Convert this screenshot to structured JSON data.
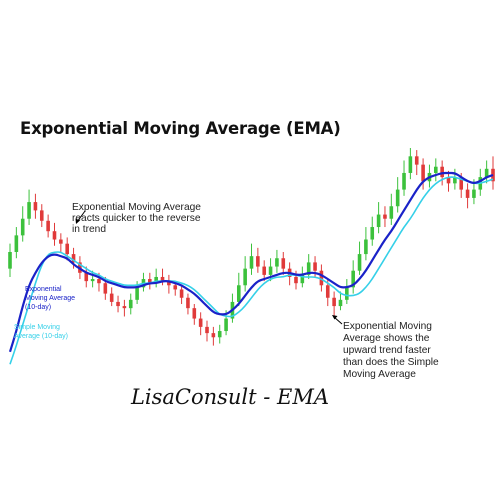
{
  "title": "Exponential Moving Average (EMA)",
  "watermark": "LisaConsult - EMA",
  "chart_data": {
    "type": "line",
    "grid": false,
    "candle_colors": {
      "up": "#3cc13c",
      "down": "#e03a3a"
    },
    "ylim": [
      0,
      100
    ],
    "candles": [
      {
        "o": 42,
        "c": 50,
        "h": 54,
        "l": 38
      },
      {
        "o": 50,
        "c": 58,
        "h": 62,
        "l": 47
      },
      {
        "o": 58,
        "c": 66,
        "h": 72,
        "l": 55
      },
      {
        "o": 66,
        "c": 74,
        "h": 80,
        "l": 63
      },
      {
        "o": 74,
        "c": 70,
        "h": 78,
        "l": 66
      },
      {
        "o": 70,
        "c": 65,
        "h": 73,
        "l": 62
      },
      {
        "o": 65,
        "c": 60,
        "h": 68,
        "l": 57
      },
      {
        "o": 60,
        "c": 56,
        "h": 64,
        "l": 53
      },
      {
        "o": 56,
        "c": 54,
        "h": 59,
        "l": 50
      },
      {
        "o": 54,
        "c": 49,
        "h": 57,
        "l": 46
      },
      {
        "o": 49,
        "c": 45,
        "h": 52,
        "l": 42
      },
      {
        "o": 45,
        "c": 40,
        "h": 48,
        "l": 37
      },
      {
        "o": 40,
        "c": 36,
        "h": 43,
        "l": 33
      },
      {
        "o": 36,
        "c": 37,
        "h": 41,
        "l": 33
      },
      {
        "o": 37,
        "c": 35,
        "h": 40,
        "l": 31
      },
      {
        "o": 35,
        "c": 30,
        "h": 38,
        "l": 27
      },
      {
        "o": 30,
        "c": 26,
        "h": 33,
        "l": 24
      },
      {
        "o": 26,
        "c": 24,
        "h": 29,
        "l": 21
      },
      {
        "o": 24,
        "c": 23,
        "h": 27,
        "l": 19
      },
      {
        "o": 23,
        "c": 27,
        "h": 30,
        "l": 20
      },
      {
        "o": 27,
        "c": 33,
        "h": 36,
        "l": 25
      },
      {
        "o": 33,
        "c": 37,
        "h": 40,
        "l": 31
      },
      {
        "o": 37,
        "c": 35,
        "h": 40,
        "l": 32
      },
      {
        "o": 35,
        "c": 38,
        "h": 42,
        "l": 33
      },
      {
        "o": 38,
        "c": 36,
        "h": 42,
        "l": 34
      },
      {
        "o": 36,
        "c": 34,
        "h": 39,
        "l": 30
      },
      {
        "o": 34,
        "c": 32,
        "h": 36,
        "l": 29
      },
      {
        "o": 32,
        "c": 28,
        "h": 34,
        "l": 25
      },
      {
        "o": 28,
        "c": 23,
        "h": 30,
        "l": 20
      },
      {
        "o": 23,
        "c": 18,
        "h": 25,
        "l": 15
      },
      {
        "o": 18,
        "c": 14,
        "h": 21,
        "l": 10
      },
      {
        "o": 14,
        "c": 11,
        "h": 17,
        "l": 7
      },
      {
        "o": 11,
        "c": 9,
        "h": 14,
        "l": 5
      },
      {
        "o": 9,
        "c": 12,
        "h": 15,
        "l": 6
      },
      {
        "o": 12,
        "c": 18,
        "h": 22,
        "l": 10
      },
      {
        "o": 18,
        "c": 26,
        "h": 30,
        "l": 16
      },
      {
        "o": 26,
        "c": 34,
        "h": 40,
        "l": 24
      },
      {
        "o": 34,
        "c": 42,
        "h": 48,
        "l": 31
      },
      {
        "o": 42,
        "c": 48,
        "h": 54,
        "l": 39
      },
      {
        "o": 48,
        "c": 43,
        "h": 52,
        "l": 40
      },
      {
        "o": 43,
        "c": 39,
        "h": 46,
        "l": 36
      },
      {
        "o": 39,
        "c": 43,
        "h": 47,
        "l": 36
      },
      {
        "o": 43,
        "c": 47,
        "h": 51,
        "l": 40
      },
      {
        "o": 47,
        "c": 42,
        "h": 50,
        "l": 39
      },
      {
        "o": 42,
        "c": 38,
        "h": 45,
        "l": 34
      },
      {
        "o": 38,
        "c": 35,
        "h": 41,
        "l": 32
      },
      {
        "o": 35,
        "c": 39,
        "h": 43,
        "l": 33
      },
      {
        "o": 39,
        "c": 45,
        "h": 49,
        "l": 37
      },
      {
        "o": 45,
        "c": 41,
        "h": 48,
        "l": 38
      },
      {
        "o": 41,
        "c": 34,
        "h": 44,
        "l": 31
      },
      {
        "o": 34,
        "c": 28,
        "h": 37,
        "l": 24
      },
      {
        "o": 28,
        "c": 24,
        "h": 31,
        "l": 19
      },
      {
        "o": 24,
        "c": 27,
        "h": 31,
        "l": 22
      },
      {
        "o": 27,
        "c": 33,
        "h": 37,
        "l": 25
      },
      {
        "o": 33,
        "c": 41,
        "h": 46,
        "l": 30
      },
      {
        "o": 41,
        "c": 49,
        "h": 55,
        "l": 39
      },
      {
        "o": 49,
        "c": 56,
        "h": 62,
        "l": 46
      },
      {
        "o": 56,
        "c": 62,
        "h": 67,
        "l": 53
      },
      {
        "o": 62,
        "c": 68,
        "h": 74,
        "l": 59
      },
      {
        "o": 68,
        "c": 66,
        "h": 72,
        "l": 62
      },
      {
        "o": 66,
        "c": 72,
        "h": 78,
        "l": 63
      },
      {
        "o": 72,
        "c": 80,
        "h": 86,
        "l": 69
      },
      {
        "o": 80,
        "c": 88,
        "h": 94,
        "l": 77
      },
      {
        "o": 88,
        "c": 96,
        "h": 100,
        "l": 85
      },
      {
        "o": 96,
        "c": 92,
        "h": 99,
        "l": 87
      },
      {
        "o": 92,
        "c": 84,
        "h": 95,
        "l": 80
      },
      {
        "o": 84,
        "c": 88,
        "h": 92,
        "l": 81
      },
      {
        "o": 88,
        "c": 91,
        "h": 95,
        "l": 84
      },
      {
        "o": 91,
        "c": 86,
        "h": 94,
        "l": 82
      },
      {
        "o": 86,
        "c": 83,
        "h": 89,
        "l": 79
      },
      {
        "o": 83,
        "c": 86,
        "h": 90,
        "l": 80
      },
      {
        "o": 86,
        "c": 80,
        "h": 88,
        "l": 76
      },
      {
        "o": 80,
        "c": 76,
        "h": 83,
        "l": 71
      },
      {
        "o": 76,
        "c": 80,
        "h": 85,
        "l": 73
      },
      {
        "o": 80,
        "c": 86,
        "h": 90,
        "l": 77
      },
      {
        "o": 86,
        "c": 90,
        "h": 94,
        "l": 83
      },
      {
        "o": 90,
        "c": 84,
        "h": 96,
        "l": 80
      }
    ],
    "series": [
      {
        "name": "Exponential Moving Average (10-day)",
        "color": "#1a22c8",
        "label_lines": [
          "Exponential",
          "Moving Average",
          "(10-day)"
        ],
        "values": [
          2,
          12,
          24,
          34,
          40,
          45,
          48,
          49,
          48,
          47,
          44,
          42,
          40,
          39,
          38,
          36,
          35,
          34,
          33,
          33,
          33,
          34,
          35,
          35,
          36,
          36,
          35,
          34,
          32,
          30,
          27,
          24,
          21,
          20,
          20,
          22,
          25,
          29,
          33,
          36,
          37,
          38,
          39,
          40,
          40,
          39,
          39,
          40,
          40,
          39,
          37,
          35,
          33,
          33,
          34,
          37,
          41,
          46,
          51,
          56,
          60,
          65,
          70,
          75,
          80,
          84,
          86,
          87,
          88,
          88,
          88,
          86,
          84,
          83,
          84,
          86,
          87
        ]
      },
      {
        "name": "Simple Moving Average (10-day)",
        "color": "#35d0e8",
        "label_lines": [
          "Simple Moving",
          "Average (10-day)"
        ],
        "values": [
          -4,
          5,
          15,
          25,
          35,
          44,
          49,
          50,
          50,
          48,
          46,
          44,
          42,
          40,
          39,
          37,
          36,
          35,
          34,
          34,
          34,
          35,
          35,
          36,
          36,
          36,
          36,
          35,
          34,
          32,
          29,
          26,
          23,
          20,
          19,
          19,
          21,
          24,
          28,
          32,
          35,
          37,
          38,
          38,
          39,
          39,
          38,
          38,
          38,
          37,
          35,
          33,
          30,
          29,
          29,
          30,
          33,
          37,
          42,
          47,
          52,
          57,
          62,
          66,
          71,
          76,
          80,
          83,
          85,
          86,
          86,
          85,
          84,
          83,
          83,
          84,
          85
        ]
      }
    ],
    "annotations": [
      {
        "lines": [
          "Exponential Moving Average",
          "reacts quicker to the reverse",
          "in trend"
        ]
      },
      {
        "lines": [
          "Exponential Moving",
          "Average shows the",
          "upward trend faster",
          "than does the Simple",
          "Moving Average"
        ]
      }
    ]
  }
}
